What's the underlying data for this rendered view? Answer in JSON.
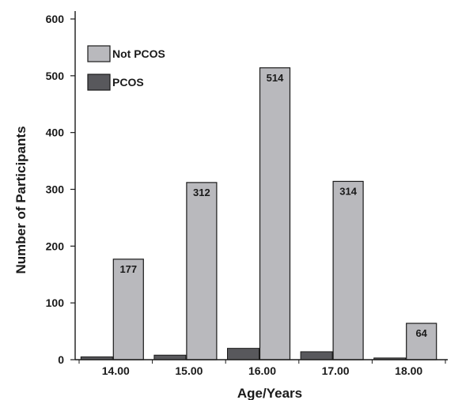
{
  "chart_data": {
    "type": "bar",
    "title": "",
    "xlabel": "Age/Years",
    "ylabel": "Number of Participants",
    "categories": [
      "14.00",
      "15.00",
      "16.00",
      "17.00",
      "18.00"
    ],
    "ylim": [
      0,
      600
    ],
    "yticks": [
      0,
      100,
      200,
      300,
      400,
      500,
      600
    ],
    "grid": false,
    "legend_position": "top-left",
    "series": [
      {
        "name": "PCOS",
        "color": "#58585c",
        "values": [
          5,
          8,
          20,
          14,
          3
        ],
        "labels": []
      },
      {
        "name": "Not PCOS",
        "color": "#b9b9bd",
        "values": [
          177,
          312,
          514,
          314,
          64
        ],
        "labels": [
          "177",
          "312",
          "514",
          "314",
          "64"
        ]
      }
    ],
    "legend": [
      {
        "name": "Not PCOS",
        "color": "#b9b9bd"
      },
      {
        "name": "PCOS",
        "color": "#58585c"
      }
    ]
  }
}
